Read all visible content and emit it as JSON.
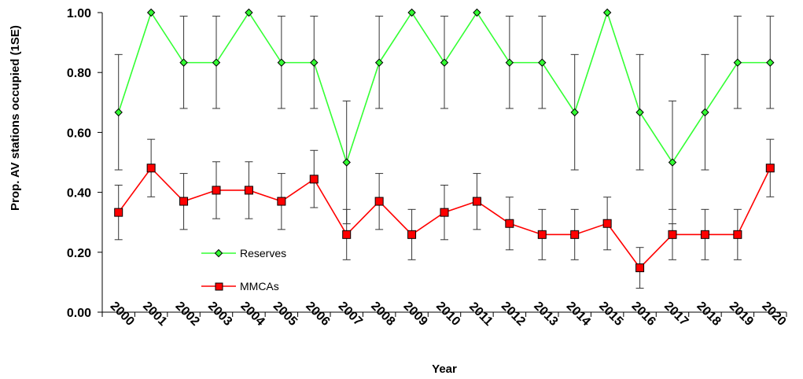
{
  "chart_data": {
    "type": "line",
    "xlabel": "Year",
    "ylabel": "Prop. AV stations occupied (1SE)",
    "ylim": [
      0,
      1
    ],
    "yticks": [
      "0.00",
      "0.20",
      "0.40",
      "0.60",
      "0.80",
      "1.00"
    ],
    "categories": [
      "2000",
      "2001",
      "2002",
      "2003",
      "2004",
      "2005",
      "2006",
      "2007",
      "2008",
      "2009",
      "2010",
      "2011",
      "2012",
      "2013",
      "2014",
      "2015",
      "2016",
      "2017",
      "2018",
      "2019",
      "2020"
    ],
    "grid": false,
    "legend_position": "bottom-left",
    "series": [
      {
        "name": "Reserves",
        "color": "#33ff33",
        "marker": "diamond",
        "values": [
          0.667,
          1.0,
          0.833,
          0.833,
          1.0,
          0.833,
          0.833,
          0.5,
          0.833,
          1.0,
          0.833,
          1.0,
          0.833,
          0.833,
          0.667,
          1.0,
          0.667,
          0.5,
          0.667,
          0.833,
          0.833
        ],
        "err_low": [
          0.475,
          1.0,
          0.68,
          0.68,
          1.0,
          0.68,
          0.68,
          0.295,
          0.68,
          1.0,
          0.68,
          1.0,
          0.68,
          0.68,
          0.475,
          1.0,
          0.475,
          0.295,
          0.475,
          0.68,
          0.68
        ],
        "err_high": [
          0.86,
          1.0,
          0.988,
          0.988,
          1.0,
          0.988,
          0.988,
          0.705,
          0.988,
          1.0,
          0.988,
          1.0,
          0.988,
          0.988,
          0.86,
          1.0,
          0.86,
          0.705,
          0.86,
          0.988,
          0.988
        ]
      },
      {
        "name": "MMCAs",
        "color": "#ff0000",
        "marker": "square",
        "values": [
          0.333,
          0.481,
          0.37,
          0.407,
          0.407,
          0.37,
          0.444,
          0.259,
          0.37,
          0.259,
          0.333,
          0.37,
          0.296,
          0.259,
          0.259,
          0.296,
          0.148,
          0.259,
          0.259,
          0.259,
          0.481
        ],
        "err_low": [
          0.242,
          0.385,
          0.276,
          0.312,
          0.312,
          0.276,
          0.349,
          0.175,
          0.276,
          0.175,
          0.242,
          0.276,
          0.208,
          0.175,
          0.175,
          0.208,
          0.08,
          0.175,
          0.175,
          0.175,
          0.385
        ],
        "err_high": [
          0.424,
          0.577,
          0.463,
          0.502,
          0.502,
          0.463,
          0.54,
          0.343,
          0.463,
          0.343,
          0.424,
          0.463,
          0.384,
          0.343,
          0.343,
          0.384,
          0.216,
          0.343,
          0.343,
          0.343,
          0.577
        ]
      }
    ]
  }
}
